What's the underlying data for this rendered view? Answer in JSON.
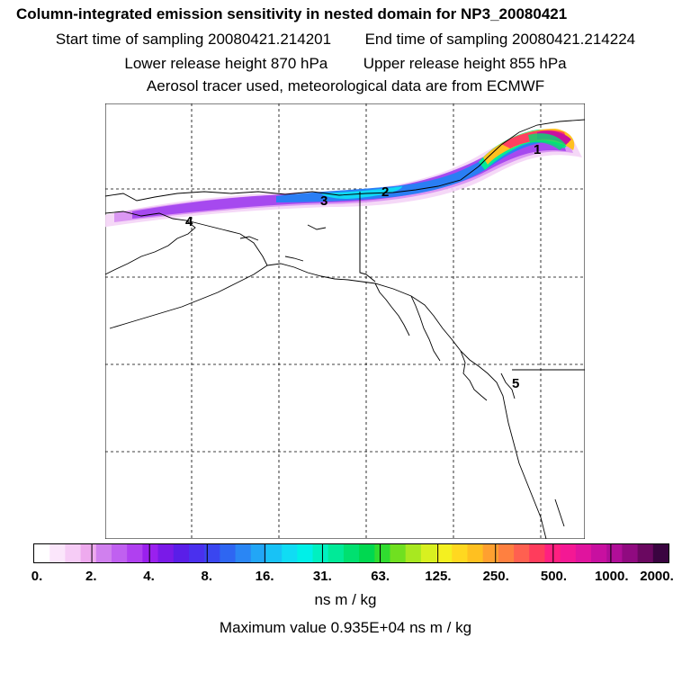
{
  "header": {
    "title": "Column-integrated emission sensitivity in nested domain for NP3_20080421",
    "start_label": "Start time of sampling 20080421.214201",
    "end_label": "End time of sampling 20080421.214224",
    "lower_label": "Lower release height  870 hPa",
    "upper_label": "Upper release height  855 hPa",
    "tracer_label": "Aerosol tracer used, meteorological data are from ECMWF"
  },
  "map": {
    "markers": [
      "1",
      "2",
      "3",
      "4",
      "5"
    ]
  },
  "colorbar": {
    "tick_labels": [
      "0.",
      "2.",
      "4.",
      "8.",
      "16.",
      "31.",
      "63.",
      "125.",
      "250.",
      "500.",
      "1000.",
      "2000."
    ],
    "colors": [
      "#ffffff",
      "#fbe6fb",
      "#f6ccf6",
      "#eeaaee",
      "#d080ee",
      "#c060f0",
      "#b040f0",
      "#9a20ee",
      "#7a1ae8",
      "#5a1ee8",
      "#4a30ee",
      "#3a46f0",
      "#2e66f2",
      "#2a86f4",
      "#22a6f6",
      "#18c2f6",
      "#10dcf4",
      "#00f0e8",
      "#00f0c0",
      "#00ea98",
      "#00e070",
      "#00d850",
      "#30dc30",
      "#70e020",
      "#a8e820",
      "#d8f020",
      "#f4f020",
      "#ffd820",
      "#ffc020",
      "#ffa030",
      "#ff8040",
      "#ff6050",
      "#ff3c5c",
      "#ff2080",
      "#f41894",
      "#e0149e",
      "#c810a0",
      "#b00e98",
      "#900a80",
      "#6a0860",
      "#3a0440"
    ],
    "units": "ns m / kg"
  },
  "footer": {
    "max_value": "Maximum value  0.935E+04 ns m / kg"
  }
}
